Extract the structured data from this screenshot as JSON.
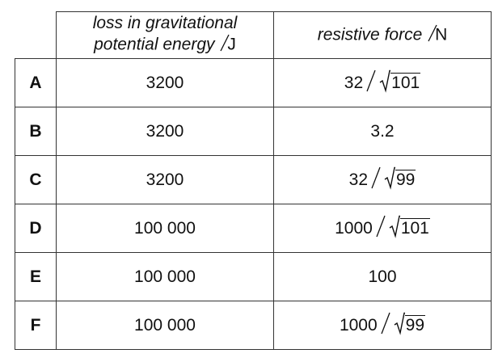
{
  "table": {
    "header": [
      {
        "lines": [
          "loss in gravitational",
          "potential energy"
        ],
        "unit": "J"
      },
      {
        "lines": [
          "resistive force"
        ],
        "unit": "N"
      }
    ],
    "rows": [
      {
        "label": "A",
        "energy": "3200",
        "force": {
          "num": "32",
          "root": "101"
        }
      },
      {
        "label": "B",
        "energy": "3200",
        "force": {
          "text": "3.2"
        }
      },
      {
        "label": "C",
        "energy": "3200",
        "force": {
          "num": "32",
          "root": "99"
        }
      },
      {
        "label": "D",
        "energy": "100 000",
        "force": {
          "num": "1000",
          "root": "101"
        }
      },
      {
        "label": "E",
        "energy": "100 000",
        "force": {
          "text": "100"
        }
      },
      {
        "label": "F",
        "energy": "100 000",
        "force": {
          "num": "1000",
          "root": "99"
        }
      }
    ]
  }
}
